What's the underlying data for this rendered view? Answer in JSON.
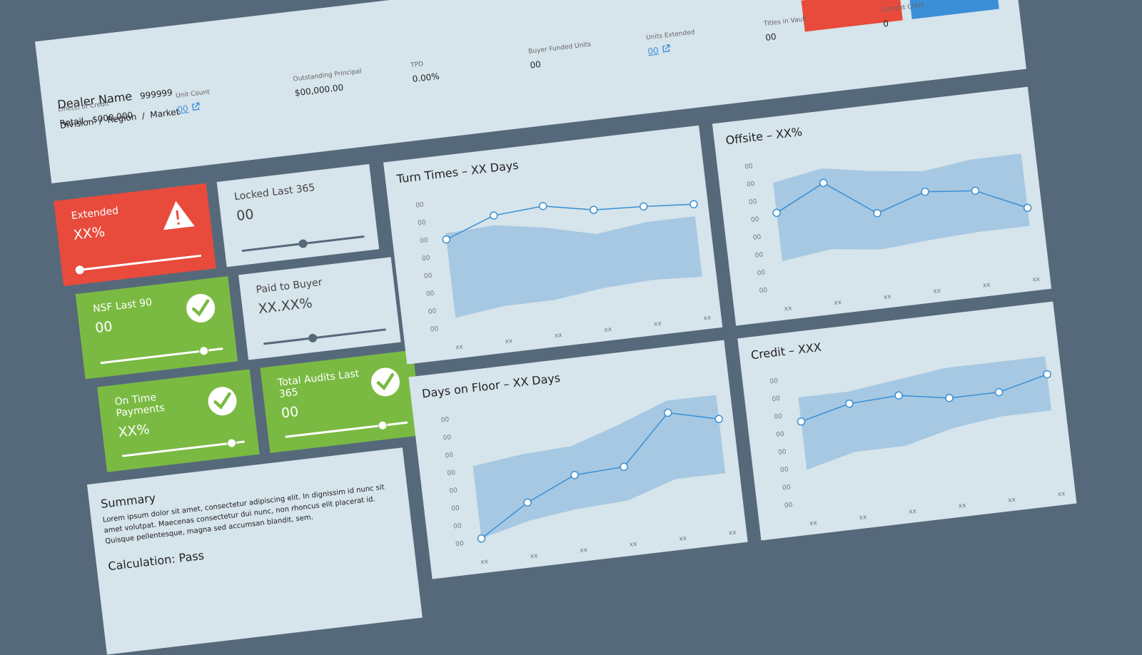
{
  "header": {
    "dealer_name": "Dealer Name",
    "dealer_number": "999999",
    "division": "Division  /  Region  /  Market",
    "fields": [
      {
        "label": "Line(s) of Credit",
        "value": "Retail - $000,000"
      },
      {
        "label": "Unit Count",
        "value": "00",
        "link": true
      },
      {
        "label": "Outstanding Principal",
        "value": "$00,000.00"
      },
      {
        "label": "TPD",
        "value": "0.00%"
      },
      {
        "label": "Buyer Funded Units",
        "value": "00"
      },
      {
        "label": "Units Extended",
        "value": "00",
        "link": true
      },
      {
        "label": "Titles in Vault",
        "value": "00"
      },
      {
        "label": "Current CUVs",
        "value": "0"
      }
    ]
  },
  "cards": [
    {
      "title": "Extended",
      "value": "XX%",
      "status": "alert"
    },
    {
      "title": "Locked Last 365",
      "value": "00",
      "status": "neutral"
    },
    {
      "title": "NSF Last 90",
      "value": "00",
      "status": "ok"
    },
    {
      "title": "Paid to Buyer",
      "value": "XX.XX%",
      "status": "neutral"
    },
    {
      "title": "On Time Payments",
      "value": "XX%",
      "status": "ok"
    },
    {
      "title": "Total Audits Last 365",
      "value": "00",
      "status": "ok"
    }
  ],
  "charts": [
    {
      "title": "Turn Times – XX Days",
      "y_labels": [
        "00",
        "00",
        "00",
        "00",
        "00",
        "00",
        "00",
        "00"
      ],
      "x_labels": [
        "xx",
        "xx",
        "xx",
        "xx",
        "xx",
        "xx"
      ]
    },
    {
      "title": "Offsite – XX%",
      "y_labels": [
        "00",
        "00",
        "00",
        "00",
        "00",
        "00",
        "00",
        "00"
      ],
      "x_labels": [
        "xx",
        "xx",
        "xx",
        "xx",
        "xx",
        "xx"
      ]
    },
    {
      "title": "Days on Floor – XX Days",
      "y_labels": [
        "00",
        "00",
        "00",
        "00",
        "00",
        "00",
        "00",
        "00"
      ],
      "x_labels": [
        "xx",
        "xx",
        "xx",
        "xx",
        "xx",
        "xx"
      ]
    },
    {
      "title": "Credit – XXX",
      "y_labels": [
        "00",
        "00",
        "00",
        "00",
        "00",
        "00",
        "00",
        "00"
      ],
      "x_labels": [
        "xx",
        "xx",
        "xx",
        "xx",
        "xx",
        "xx"
      ]
    }
  ],
  "summary": {
    "title": "Summary",
    "text": "Lorem ipsum dolor sit amet, consectetur adipiscing elit. In dignissim id nunc sit amet volutpat. Maecenas consectetur dui nunc, non rhoncus elit placerat id. Quisque pellentesque, magna sed accumsan blandit, sem.",
    "result": "Calculation: Pass"
  }
}
